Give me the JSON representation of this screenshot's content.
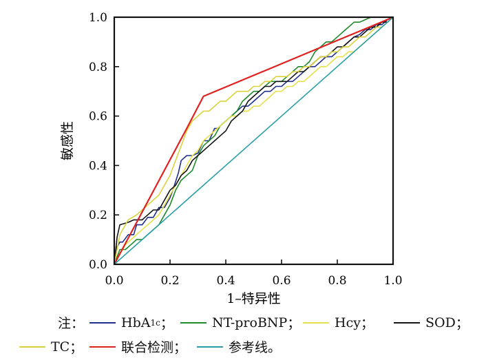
{
  "chart_data": {
    "type": "line",
    "xlabel": "1–特异性",
    "ylabel": "敏感性",
    "xlim": [
      0,
      1
    ],
    "ylim": [
      0,
      1
    ],
    "xticks": [
      "0.0",
      "0.2",
      "0.4",
      "0.6",
      "0.8",
      "1.0"
    ],
    "yticks": [
      "0.0",
      "0.2",
      "0.4",
      "0.6",
      "0.8",
      "1.0"
    ],
    "grid": false,
    "series": [
      {
        "key": "hba1c",
        "name": "HbA1c",
        "color": "#1f2f8c",
        "x": [
          0,
          0.01,
          0.02,
          0.03,
          0.05,
          0.07,
          0.08,
          0.1,
          0.12,
          0.14,
          0.16,
          0.18,
          0.2,
          0.21,
          0.23,
          0.24,
          0.26,
          0.28,
          0.3,
          0.32,
          0.34,
          0.36,
          0.37,
          0.4,
          0.42,
          0.44,
          0.46,
          0.48,
          0.5,
          0.52,
          0.54,
          0.56,
          0.58,
          0.6,
          0.62,
          0.64,
          0.66,
          0.68,
          0.7,
          0.72,
          0.74,
          0.76,
          0.78,
          0.8,
          0.82,
          0.84,
          0.86,
          0.88,
          0.9,
          0.92,
          0.94,
          0.96,
          0.98,
          1.0
        ],
        "y": [
          0,
          0.07,
          0.09,
          0.09,
          0.12,
          0.12,
          0.16,
          0.16,
          0.19,
          0.19,
          0.23,
          0.23,
          0.27,
          0.3,
          0.37,
          0.42,
          0.44,
          0.44,
          0.45,
          0.5,
          0.5,
          0.55,
          0.55,
          0.58,
          0.6,
          0.62,
          0.64,
          0.64,
          0.66,
          0.68,
          0.7,
          0.7,
          0.72,
          0.72,
          0.74,
          0.74,
          0.76,
          0.78,
          0.8,
          0.8,
          0.82,
          0.84,
          0.84,
          0.86,
          0.88,
          0.9,
          0.92,
          0.93,
          0.95,
          0.95,
          0.97,
          0.97,
          0.99,
          1.0
        ]
      },
      {
        "key": "ntprobnp",
        "name": "NT-proBNP",
        "color": "#1e8a2a",
        "x": [
          0,
          0.02,
          0.04,
          0.06,
          0.08,
          0.1,
          0.12,
          0.14,
          0.16,
          0.18,
          0.2,
          0.22,
          0.24,
          0.26,
          0.28,
          0.3,
          0.32,
          0.34,
          0.36,
          0.38,
          0.4,
          0.42,
          0.44,
          0.46,
          0.48,
          0.5,
          0.52,
          0.54,
          0.56,
          0.58,
          0.6,
          0.62,
          0.64,
          0.66,
          0.68,
          0.7,
          0.72,
          0.74,
          0.76,
          0.78,
          0.8,
          0.82,
          0.84,
          0.86,
          0.88,
          0.9,
          0.92,
          0.94,
          0.96,
          0.98,
          1.0
        ],
        "y": [
          0,
          0.06,
          0.06,
          0.08,
          0.1,
          0.1,
          0.12,
          0.14,
          0.16,
          0.2,
          0.24,
          0.3,
          0.34,
          0.36,
          0.38,
          0.44,
          0.48,
          0.5,
          0.52,
          0.56,
          0.58,
          0.6,
          0.62,
          0.66,
          0.68,
          0.7,
          0.7,
          0.72,
          0.74,
          0.74,
          0.74,
          0.76,
          0.78,
          0.8,
          0.8,
          0.82,
          0.86,
          0.88,
          0.9,
          0.9,
          0.92,
          0.94,
          0.96,
          0.98,
          0.98,
          0.99,
          1.0,
          1.0,
          1.0,
          1.0,
          1.0
        ]
      },
      {
        "key": "hcy",
        "name": "Hcy",
        "color": "#e6e04a",
        "x": [
          0,
          0.02,
          0.04,
          0.06,
          0.08,
          0.1,
          0.12,
          0.14,
          0.16,
          0.18,
          0.2,
          0.22,
          0.24,
          0.26,
          0.28,
          0.3,
          0.32,
          0.34,
          0.36,
          0.38,
          0.4,
          0.42,
          0.44,
          0.46,
          0.48,
          0.5,
          0.52,
          0.54,
          0.56,
          0.58,
          0.6,
          0.62,
          0.64,
          0.66,
          0.68,
          0.7,
          0.72,
          0.74,
          0.76,
          0.78,
          0.8,
          0.82,
          0.84,
          0.86,
          0.88,
          0.9,
          0.92,
          0.94,
          0.96,
          0.98,
          1.0
        ],
        "y": [
          0,
          0.04,
          0.08,
          0.1,
          0.12,
          0.14,
          0.16,
          0.18,
          0.2,
          0.24,
          0.28,
          0.32,
          0.36,
          0.4,
          0.44,
          0.46,
          0.5,
          0.52,
          0.54,
          0.56,
          0.58,
          0.6,
          0.6,
          0.62,
          0.62,
          0.64,
          0.64,
          0.66,
          0.68,
          0.7,
          0.7,
          0.72,
          0.72,
          0.74,
          0.74,
          0.76,
          0.78,
          0.8,
          0.8,
          0.82,
          0.84,
          0.84,
          0.86,
          0.86,
          0.88,
          0.9,
          0.92,
          0.94,
          0.96,
          0.98,
          1.0
        ]
      },
      {
        "key": "sod",
        "name": "SOD",
        "color": "#141414",
        "x": [
          0,
          0.01,
          0.02,
          0.05,
          0.07,
          0.1,
          0.12,
          0.14,
          0.16,
          0.18,
          0.2,
          0.22,
          0.24,
          0.26,
          0.28,
          0.3,
          0.32,
          0.34,
          0.36,
          0.38,
          0.4,
          0.42,
          0.44,
          0.46,
          0.48,
          0.5,
          0.52,
          0.54,
          0.56,
          0.58,
          0.6,
          0.62,
          0.64,
          0.66,
          0.68,
          0.7,
          0.72,
          0.74,
          0.76,
          0.78,
          0.8,
          0.82,
          0.84,
          0.86,
          0.88,
          0.9,
          0.92,
          0.94,
          0.96,
          0.98,
          1.0
        ],
        "y": [
          0,
          0.11,
          0.16,
          0.17,
          0.18,
          0.18,
          0.2,
          0.22,
          0.22,
          0.26,
          0.3,
          0.32,
          0.36,
          0.38,
          0.42,
          0.44,
          0.46,
          0.48,
          0.5,
          0.52,
          0.54,
          0.58,
          0.6,
          0.62,
          0.66,
          0.68,
          0.7,
          0.72,
          0.72,
          0.74,
          0.74,
          0.74,
          0.76,
          0.78,
          0.78,
          0.8,
          0.82,
          0.84,
          0.84,
          0.86,
          0.88,
          0.88,
          0.9,
          0.92,
          0.92,
          0.94,
          0.96,
          0.96,
          0.98,
          0.98,
          1.0
        ]
      },
      {
        "key": "tc",
        "name": "TC",
        "color": "#d9d23b",
        "x": [
          0,
          0.02,
          0.03,
          0.05,
          0.08,
          0.1,
          0.12,
          0.14,
          0.16,
          0.18,
          0.2,
          0.22,
          0.24,
          0.26,
          0.28,
          0.3,
          0.32,
          0.34,
          0.36,
          0.38,
          0.4,
          0.42,
          0.44,
          0.46,
          0.48,
          0.5,
          0.52,
          0.54,
          0.56,
          0.58,
          0.6,
          0.62,
          0.64,
          0.66,
          0.68,
          0.7,
          0.72,
          0.74,
          0.76,
          0.78,
          0.8,
          0.82,
          0.84,
          0.86,
          0.88,
          0.9,
          0.92,
          0.94,
          0.96,
          0.98,
          1.0
        ],
        "y": [
          0,
          0.12,
          0.14,
          0.18,
          0.2,
          0.22,
          0.24,
          0.26,
          0.28,
          0.32,
          0.36,
          0.42,
          0.48,
          0.54,
          0.58,
          0.6,
          0.62,
          0.62,
          0.64,
          0.66,
          0.66,
          0.68,
          0.7,
          0.7,
          0.7,
          0.72,
          0.72,
          0.74,
          0.74,
          0.76,
          0.76,
          0.76,
          0.78,
          0.78,
          0.8,
          0.8,
          0.82,
          0.84,
          0.84,
          0.86,
          0.86,
          0.88,
          0.88,
          0.9,
          0.92,
          0.92,
          0.94,
          0.96,
          0.96,
          0.98,
          1.0
        ]
      },
      {
        "key": "combined",
        "name": "联合检测",
        "color": "#e02020",
        "x": [
          0,
          0.26,
          0.32,
          1.0
        ],
        "y": [
          0,
          0.55,
          0.68,
          1.0
        ]
      },
      {
        "key": "reference",
        "name": "参考线",
        "color": "#2a9ea6",
        "x": [
          0,
          1.0
        ],
        "y": [
          0,
          1.0
        ]
      }
    ]
  },
  "legend": {
    "note": "注：",
    "items": [
      {
        "key": "hba1c",
        "label_main": "HbA",
        "label_sub": "1c",
        "sep": "；",
        "color": "#1f2f8c"
      },
      {
        "key": "ntprobnp",
        "label_main": "NT-proBNP",
        "label_sub": "",
        "sep": "；",
        "color": "#1e8a2a"
      },
      {
        "key": "hcy",
        "label_main": "Hcy",
        "label_sub": "",
        "sep": "；",
        "color": "#e6e04a"
      },
      {
        "key": "sod",
        "label_main": "SOD",
        "label_sub": "",
        "sep": "；",
        "color": "#141414"
      },
      {
        "key": "tc",
        "label_main": "TC",
        "label_sub": "",
        "sep": "；",
        "color": "#d9d23b"
      },
      {
        "key": "combined",
        "label_main": "联合检测",
        "label_sub": "",
        "sep": "；",
        "color": "#e02020"
      },
      {
        "key": "reference",
        "label_main": "参考线",
        "label_sub": "",
        "sep": "。",
        "color": "#2a9ea6"
      }
    ]
  }
}
